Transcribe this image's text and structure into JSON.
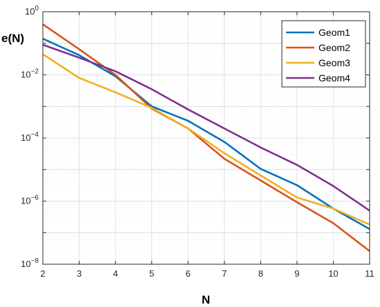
{
  "chart_data": {
    "type": "line",
    "xlabel": "N",
    "ylabel": "e(N)",
    "xlim": [
      2,
      11
    ],
    "ylim_log10": [
      -8,
      0
    ],
    "yscale": "log",
    "grid": "on (major and minor)",
    "legend_position": "top-right",
    "x": [
      2,
      3,
      4,
      5,
      6,
      7,
      8,
      9,
      10,
      11
    ],
    "x_tick_labels": [
      "2",
      "3",
      "4",
      "5",
      "6",
      "7",
      "8",
      "9",
      "10",
      "11"
    ],
    "y_ticks_log10": [
      -8,
      -6,
      -4,
      -2,
      0
    ],
    "series": [
      {
        "name": "Geom1",
        "color": "#0072BD",
        "values": [
          0.14,
          0.042,
          0.009,
          0.001,
          0.00035,
          7.5e-05,
          1.05e-05,
          3.2e-06,
          5.8e-07,
          1.3e-07
        ]
      },
      {
        "name": "Geom2",
        "color": "#D95319",
        "values": [
          0.4,
          0.065,
          0.01,
          0.00085,
          0.0002,
          2.2e-05,
          4.5e-06,
          9.2e-07,
          2e-07,
          2.6e-08
        ]
      },
      {
        "name": "Geom3",
        "color": "#EDB120",
        "values": [
          0.045,
          0.008,
          0.0028,
          0.0009,
          0.0002,
          3.3e-05,
          6.5e-06,
          1.3e-06,
          5.8e-07,
          1.8e-07
        ]
      },
      {
        "name": "Geom4",
        "color": "#7E2F8E",
        "values": [
          0.09,
          0.035,
          0.013,
          0.0035,
          0.0008,
          0.0002,
          5e-05,
          1.4e-05,
          3e-06,
          5e-07
        ]
      }
    ]
  }
}
